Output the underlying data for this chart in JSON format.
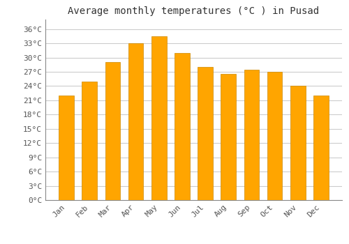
{
  "title": "Average monthly temperatures (°C ) in Pusad",
  "months": [
    "Jan",
    "Feb",
    "Mar",
    "Apr",
    "May",
    "Jun",
    "Jul",
    "Aug",
    "Sep",
    "Oct",
    "Nov",
    "Dec"
  ],
  "temperatures": [
    22.0,
    25.0,
    29.0,
    33.0,
    34.5,
    31.0,
    28.0,
    26.5,
    27.5,
    27.0,
    24.0,
    22.0
  ],
  "bar_color": "#FFA500",
  "bar_edge_color": "#CC8800",
  "bar_linewidth": 0.5,
  "ylim": [
    0,
    38
  ],
  "yticks": [
    0,
    3,
    6,
    9,
    12,
    15,
    18,
    21,
    24,
    27,
    30,
    33,
    36
  ],
  "ytick_labels": [
    "0°C",
    "3°C",
    "6°C",
    "9°C",
    "12°C",
    "15°C",
    "18°C",
    "21°C",
    "24°C",
    "27°C",
    "30°C",
    "33°C",
    "36°C"
  ],
  "background_color": "#ffffff",
  "grid_color": "#cccccc",
  "title_fontsize": 10,
  "tick_fontsize": 8,
  "font_family": "monospace",
  "bar_width": 0.65
}
